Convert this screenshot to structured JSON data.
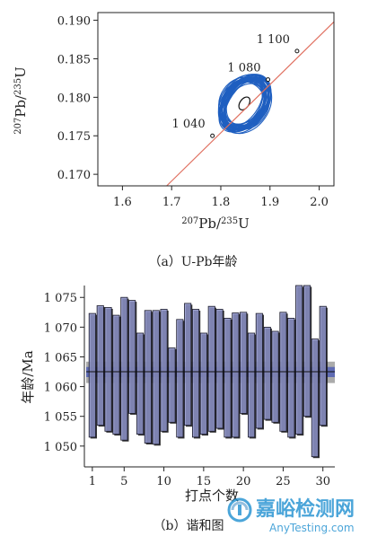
{
  "captions": {
    "a": "（a）U-Pb年龄",
    "b": "（b）谐和图"
  },
  "watermark": {
    "text": "嘉峪检测网",
    "url": "AnyTesting.com",
    "color": "#1f8fd0"
  },
  "chart_data": [
    {
      "type": "scatter",
      "subtype": "concordia",
      "xlabel": "207Pb/235U",
      "ylabel": "207Pb/235U",
      "xlim": [
        1.55,
        2.03
      ],
      "ylim": [
        0.1685,
        0.191
      ],
      "x_ticks": [
        1.6,
        1.7,
        1.8,
        1.9,
        2.0
      ],
      "x_tick_labels": [
        "1.6",
        "1.7",
        "1.8",
        "1.9",
        "2.0"
      ],
      "y_ticks": [
        0.17,
        0.175,
        0.18,
        0.185,
        0.19
      ],
      "y_tick_labels": [
        "0.170",
        "0.175",
        "0.180",
        "0.185",
        "0.190"
      ],
      "concordia_line": {
        "color": "#e07060",
        "from": [
          1.69,
          0.1685
        ],
        "to": [
          2.03,
          0.1898
        ]
      },
      "age_markers": [
        {
          "label": "1 040",
          "x": 1.783,
          "y": 0.175
        },
        {
          "label": "1 080",
          "x": 1.896,
          "y": 0.1823
        },
        {
          "label": "1 100",
          "x": 1.955,
          "y": 0.186
        }
      ],
      "ellipses": {
        "color": "#1f5fc0",
        "count": 30,
        "center": [
          1.848,
          0.1792
        ],
        "mean_ellipse_color": "#111111"
      },
      "grid": false
    },
    {
      "type": "bar",
      "subtype": "floating-error-bars",
      "xlabel": "打点个数",
      "ylabel": "年龄/Ma",
      "xlim": [
        0,
        31.5
      ],
      "ylim": [
        1046.5,
        1077
      ],
      "x_ticks": [
        1,
        5,
        10,
        15,
        20,
        25,
        30
      ],
      "x_tick_labels": [
        "1",
        "5",
        "10",
        "15",
        "20",
        "25",
        "30"
      ],
      "y_ticks": [
        1050,
        1055,
        1060,
        1065,
        1070,
        1075
      ],
      "y_tick_labels": [
        "1 050",
        "1 055",
        "1 060",
        "1 065",
        "1 070",
        "1 075"
      ],
      "bar_color": "#8c92c8",
      "bar_edge": "#1a1a2a",
      "mean_line": 1062.5,
      "mean_band_outer": [
        1060.6,
        1064.2
      ],
      "mean_band_inner": [
        1061.6,
        1063.3
      ],
      "band_outer_color": "#9c9c9c",
      "band_inner_color": "#4555b5",
      "x": [
        1,
        2,
        3,
        4,
        5,
        6,
        7,
        8,
        9,
        10,
        11,
        12,
        13,
        14,
        15,
        16,
        17,
        18,
        19,
        20,
        21,
        22,
        23,
        24,
        25,
        26,
        27,
        28,
        29,
        30
      ],
      "low": [
        1051.5,
        1053.5,
        1052.5,
        1052.0,
        1051.0,
        1055.5,
        1052.0,
        1050.5,
        1050.3,
        1052.5,
        1054.0,
        1051.5,
        1053.5,
        1051.5,
        1052.0,
        1052.5,
        1053.0,
        1051.5,
        1051.5,
        1055.5,
        1051.5,
        1053.0,
        1054.5,
        1054.0,
        1052.5,
        1051.5,
        1052.0,
        1055.0,
        1048.2,
        1053.5
      ],
      "high": [
        1072.3,
        1073.6,
        1073.3,
        1072.0,
        1075.0,
        1074.5,
        1069.0,
        1072.8,
        1072.8,
        1073.0,
        1066.5,
        1071.3,
        1074.0,
        1073.0,
        1069.0,
        1073.5,
        1073.0,
        1071.5,
        1072.4,
        1072.5,
        1069.0,
        1072.3,
        1070.0,
        1069.3,
        1072.5,
        1071.5,
        1077.0,
        1077.0,
        1068.0,
        1073.5
      ]
    }
  ]
}
